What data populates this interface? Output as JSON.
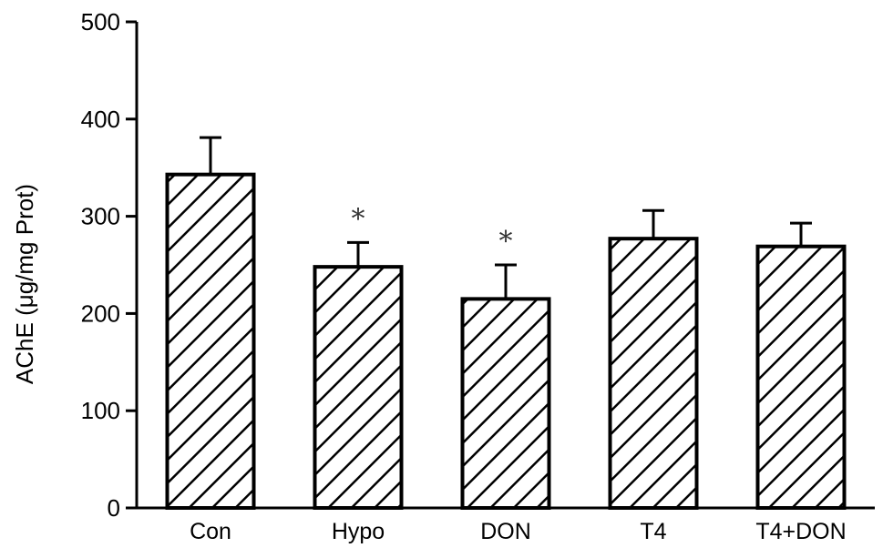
{
  "chart_data": {
    "type": "bar",
    "categories": [
      "Con",
      "Hypo",
      "DON",
      "T4",
      "T4+DON"
    ],
    "values": [
      343,
      248,
      215,
      277,
      269
    ],
    "errors": [
      38,
      25,
      35,
      29,
      24
    ],
    "significance": [
      "",
      "*",
      "*",
      "",
      ""
    ],
    "ylabel": "AChE (μg/mg Prot)",
    "xlabel": "",
    "ylim": [
      0,
      500
    ],
    "yticks": [
      0,
      100,
      200,
      300,
      400,
      500
    ],
    "bar_fill": "hatched-diagonal",
    "colors": {
      "bar_stroke": "#000000",
      "hatch": "#000000",
      "axis": "#000000",
      "background": "#ffffff"
    },
    "grid": false,
    "legend": "none"
  }
}
